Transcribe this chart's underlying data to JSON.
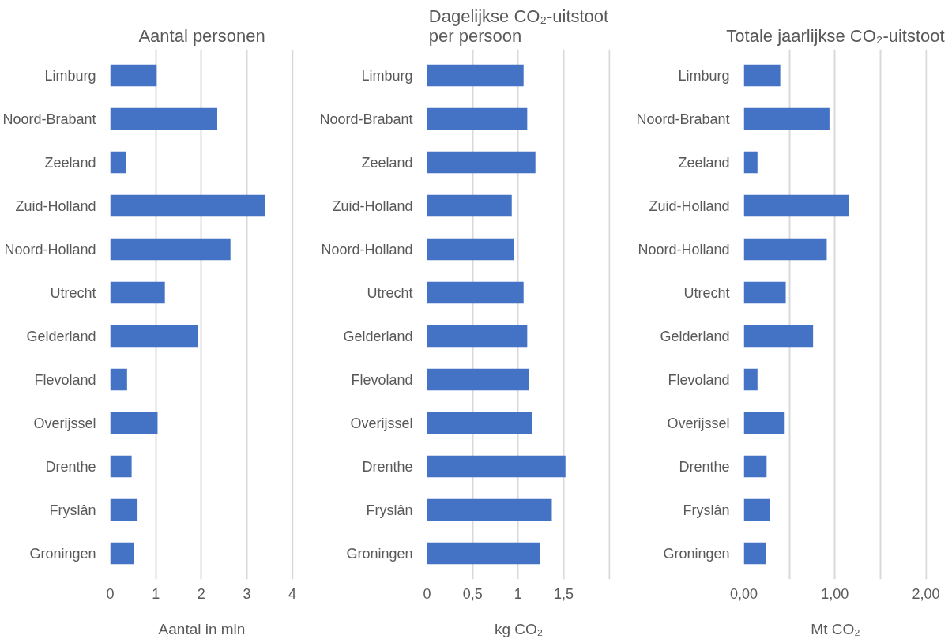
{
  "chart_data": [
    {
      "type": "bar",
      "orientation": "horizontal",
      "title": "Aantal personen",
      "xlabel": "Aantal in mln",
      "categories": [
        "Limburg",
        "Noord-Brabant",
        "Zeeland",
        "Zuid-Holland",
        "Noord-Holland",
        "Utrecht",
        "Gelderland",
        "Flevoland",
        "Overijssel",
        "Drenthe",
        "Fryslân",
        "Groningen"
      ],
      "values": [
        1.02,
        2.35,
        0.34,
        3.4,
        2.64,
        1.2,
        1.93,
        0.37,
        1.04,
        0.47,
        0.6,
        0.52
      ],
      "color": "#4472c4",
      "xlim": [
        0,
        4
      ],
      "xticks": [
        0,
        1,
        2,
        3,
        4
      ],
      "grid": "x"
    },
    {
      "type": "bar",
      "orientation": "horizontal",
      "title": "Dagelijkse CO₂-uitstoot\nper persoon",
      "xlabel": "kg CO₂",
      "categories": [
        "Limburg",
        "Noord-Brabant",
        "Zeeland",
        "Zuid-Holland",
        "Noord-Holland",
        "Utrecht",
        "Gelderland",
        "Flevoland",
        "Overijssel",
        "Drenthe",
        "Fryslân",
        "Groningen"
      ],
      "values": [
        1.06,
        1.1,
        1.19,
        0.93,
        0.95,
        1.06,
        1.1,
        1.12,
        1.15,
        1.52,
        1.37,
        1.24
      ],
      "color": "#4472c4",
      "xlim": [
        0,
        2
      ],
      "xticks": [
        0,
        {
          "value": 0.5,
          "label": "0,5"
        },
        1,
        {
          "value": 1.5,
          "label": "1,5"
        },
        {
          "value": 2,
          "label": null
        }
      ],
      "grid": "x"
    },
    {
      "type": "bar",
      "orientation": "horizontal",
      "title": "Totale jaarlijkse CO₂-uitstoot",
      "xlabel": "Mt CO₂",
      "categories": [
        "Limburg",
        "Noord-Brabant",
        "Zeeland",
        "Zuid-Holland",
        "Noord-Holland",
        "Utrecht",
        "Gelderland",
        "Flevoland",
        "Overijssel",
        "Drenthe",
        "Fryslân",
        "Groningen"
      ],
      "values": [
        0.4,
        0.94,
        0.15,
        1.15,
        0.91,
        0.46,
        0.76,
        0.15,
        0.44,
        0.25,
        0.29,
        0.24
      ],
      "color": "#4472c4",
      "xlim": [
        0,
        2
      ],
      "xticks": [
        {
          "value": 0,
          "label": "0,00"
        },
        {
          "value": 0.5,
          "label": null
        },
        {
          "value": 1,
          "label": "1,00"
        },
        {
          "value": 1.5,
          "label": null
        },
        {
          "value": 2,
          "label": "2,00"
        }
      ],
      "grid": "x"
    }
  ]
}
